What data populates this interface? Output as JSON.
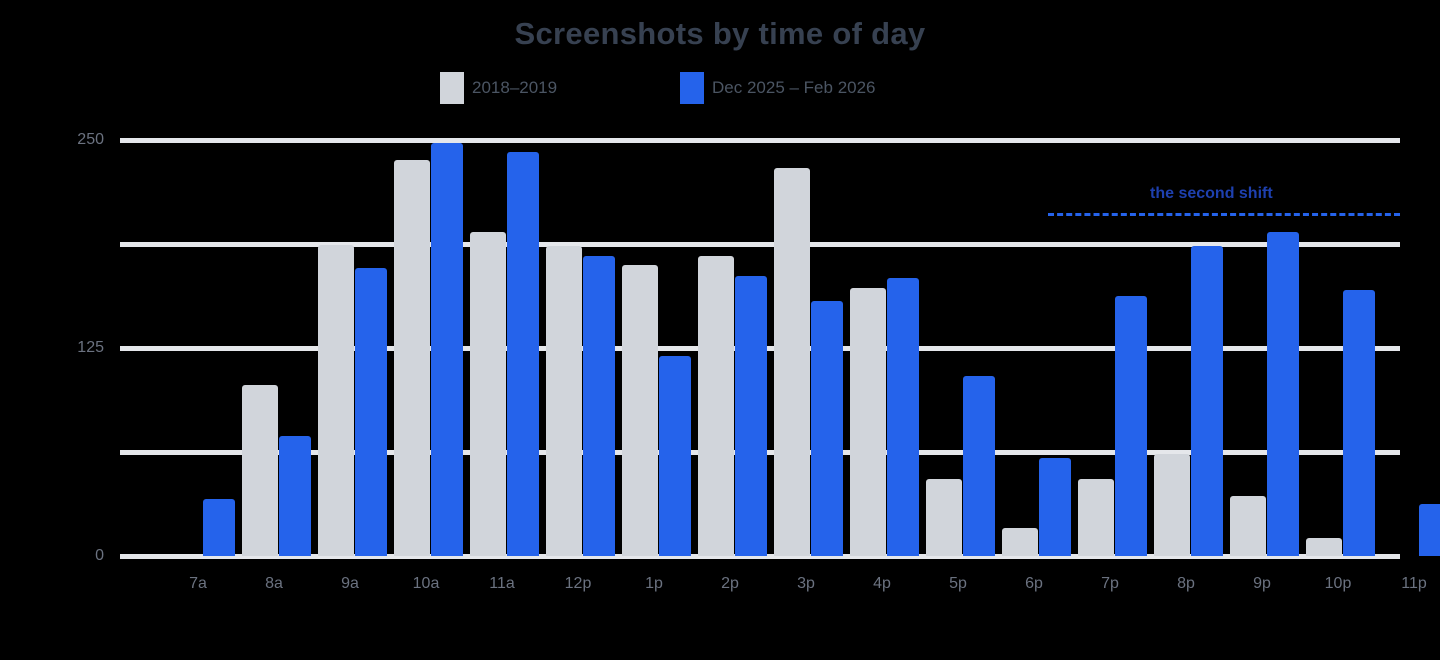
{
  "chart_data": {
    "type": "bar",
    "title": "Screenshots by time of day",
    "xlabel": "",
    "ylabel": "",
    "ylim": [
      0,
      250
    ],
    "yticks": [
      0,
      125,
      250
    ],
    "gridlines": [
      0,
      62.5,
      125,
      187.5,
      250
    ],
    "grid": true,
    "legend_position": "top",
    "categories": [
      "7a",
      "8a",
      "9a",
      "10a",
      "11a",
      "12p",
      "1p",
      "2p",
      "3p",
      "4p",
      "5p",
      "6p",
      "7p",
      "8p",
      "9p",
      "10p",
      "11p"
    ],
    "series": [
      {
        "name": "2018–2019",
        "color": "#d1d5db",
        "values": [
          0,
          103,
          187,
          238,
          195,
          186,
          175,
          180,
          233,
          161,
          46,
          17,
          46,
          61,
          36,
          11,
          0
        ]
      },
      {
        "name": "Dec 2025 – Feb 2026",
        "color": "#2563eb",
        "values": [
          34,
          72,
          173,
          248,
          243,
          180,
          120,
          168,
          153,
          167,
          108,
          59,
          156,
          186,
          195,
          160,
          31
        ]
      }
    ],
    "annotations": [
      {
        "text": "the second shift",
        "style": "dashed-line",
        "color": "#2563eb",
        "x_from": "7p",
        "x_to": "11p"
      }
    ]
  },
  "labels": {
    "title": "Screenshots by time of day",
    "legend": [
      "2018–2019",
      "Dec 2025 – Feb 2026"
    ],
    "yticks": [
      "250",
      "125",
      "0"
    ],
    "annotation": "the second shift"
  }
}
